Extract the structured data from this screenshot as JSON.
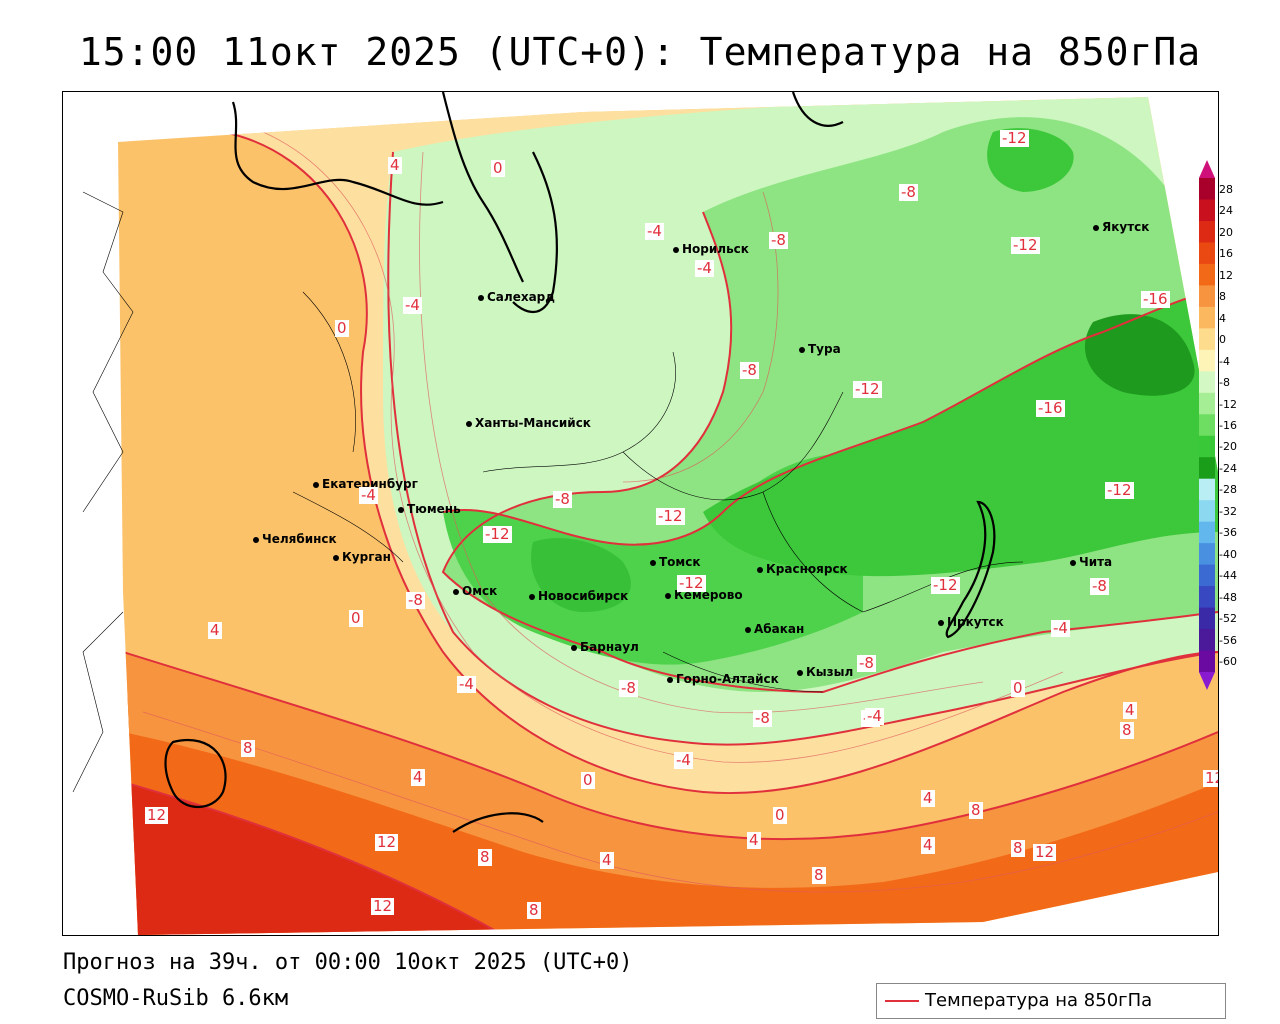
{
  "title": "15:00 11окт 2025 (UTC+0): Температура на 850гПа",
  "footer": {
    "forecast": "Прогноз на 39ч. от 00:00 10окт 2025 (UTC+0)",
    "model": "COSMO-RuSib 6.6км"
  },
  "legend": {
    "label": "Температура на 850гПа",
    "line_color": "#e0303c"
  },
  "colorbar": {
    "ticks": [
      "28",
      "24",
      "20",
      "16",
      "12",
      "8",
      "4",
      "0",
      "-4",
      "-8",
      "-12",
      "-16",
      "-20",
      "-24",
      "-28",
      "-32",
      "-36",
      "-40",
      "-44",
      "-48",
      "-52",
      "-56",
      "-60"
    ],
    "colors": [
      "#a8002a",
      "#c8101e",
      "#dc2a14",
      "#ea4a12",
      "#f26a18",
      "#f79440",
      "#fbb85e",
      "#fddc8e",
      "#fff4b8",
      "#d4f8c4",
      "#a6ee96",
      "#6ede62",
      "#38c838",
      "#1a9e1a",
      "#b8eef4",
      "#8cd8f0",
      "#62b8ec",
      "#4a90e0",
      "#3a6ad2",
      "#3848c0",
      "#3a2aa8",
      "#4a1a9a",
      "#6a0aa0"
    ],
    "top_arrow_color": "#d0107a",
    "bottom_arrow_color": "#8a1ad0"
  },
  "cities": [
    {
      "name": "Норильск"
    },
    {
      "name": "Якутск"
    },
    {
      "name": "Салехард"
    },
    {
      "name": "Тура"
    },
    {
      "name": "Ханты-Мансийск"
    },
    {
      "name": "Екатеринбург"
    },
    {
      "name": "Тюмень"
    },
    {
      "name": "Челябинск"
    },
    {
      "name": "Курган"
    },
    {
      "name": "Томск"
    },
    {
      "name": "Красноярск"
    },
    {
      "name": "Омск"
    },
    {
      "name": "Новосибирск"
    },
    {
      "name": "Кемерово"
    },
    {
      "name": "Абакан"
    },
    {
      "name": "Иркутск"
    },
    {
      "name": "Чита"
    },
    {
      "name": "Барнаул"
    },
    {
      "name": "Горно-Алтайск"
    },
    {
      "name": "Кызыл"
    }
  ],
  "contour_labels": [
    "4",
    "0",
    "-4",
    "-4",
    "0",
    "-4",
    "-8",
    "-12",
    "-8",
    "-8",
    "-12",
    "-12",
    "-16",
    "-8",
    "-12",
    "-16",
    "-12",
    "-4",
    "-8",
    "-12",
    "-12",
    "-8",
    "-12",
    "-8",
    "-4",
    "-8",
    "-4",
    "0",
    "0",
    "4",
    "-4",
    "8",
    "12",
    "12",
    "4",
    "0",
    "8",
    "4",
    "0",
    "4",
    "12",
    "8",
    "4",
    "8",
    "4",
    "8",
    "8",
    "12",
    "8",
    "12",
    "-8",
    "-4",
    "0",
    "4",
    "-4"
  ]
}
